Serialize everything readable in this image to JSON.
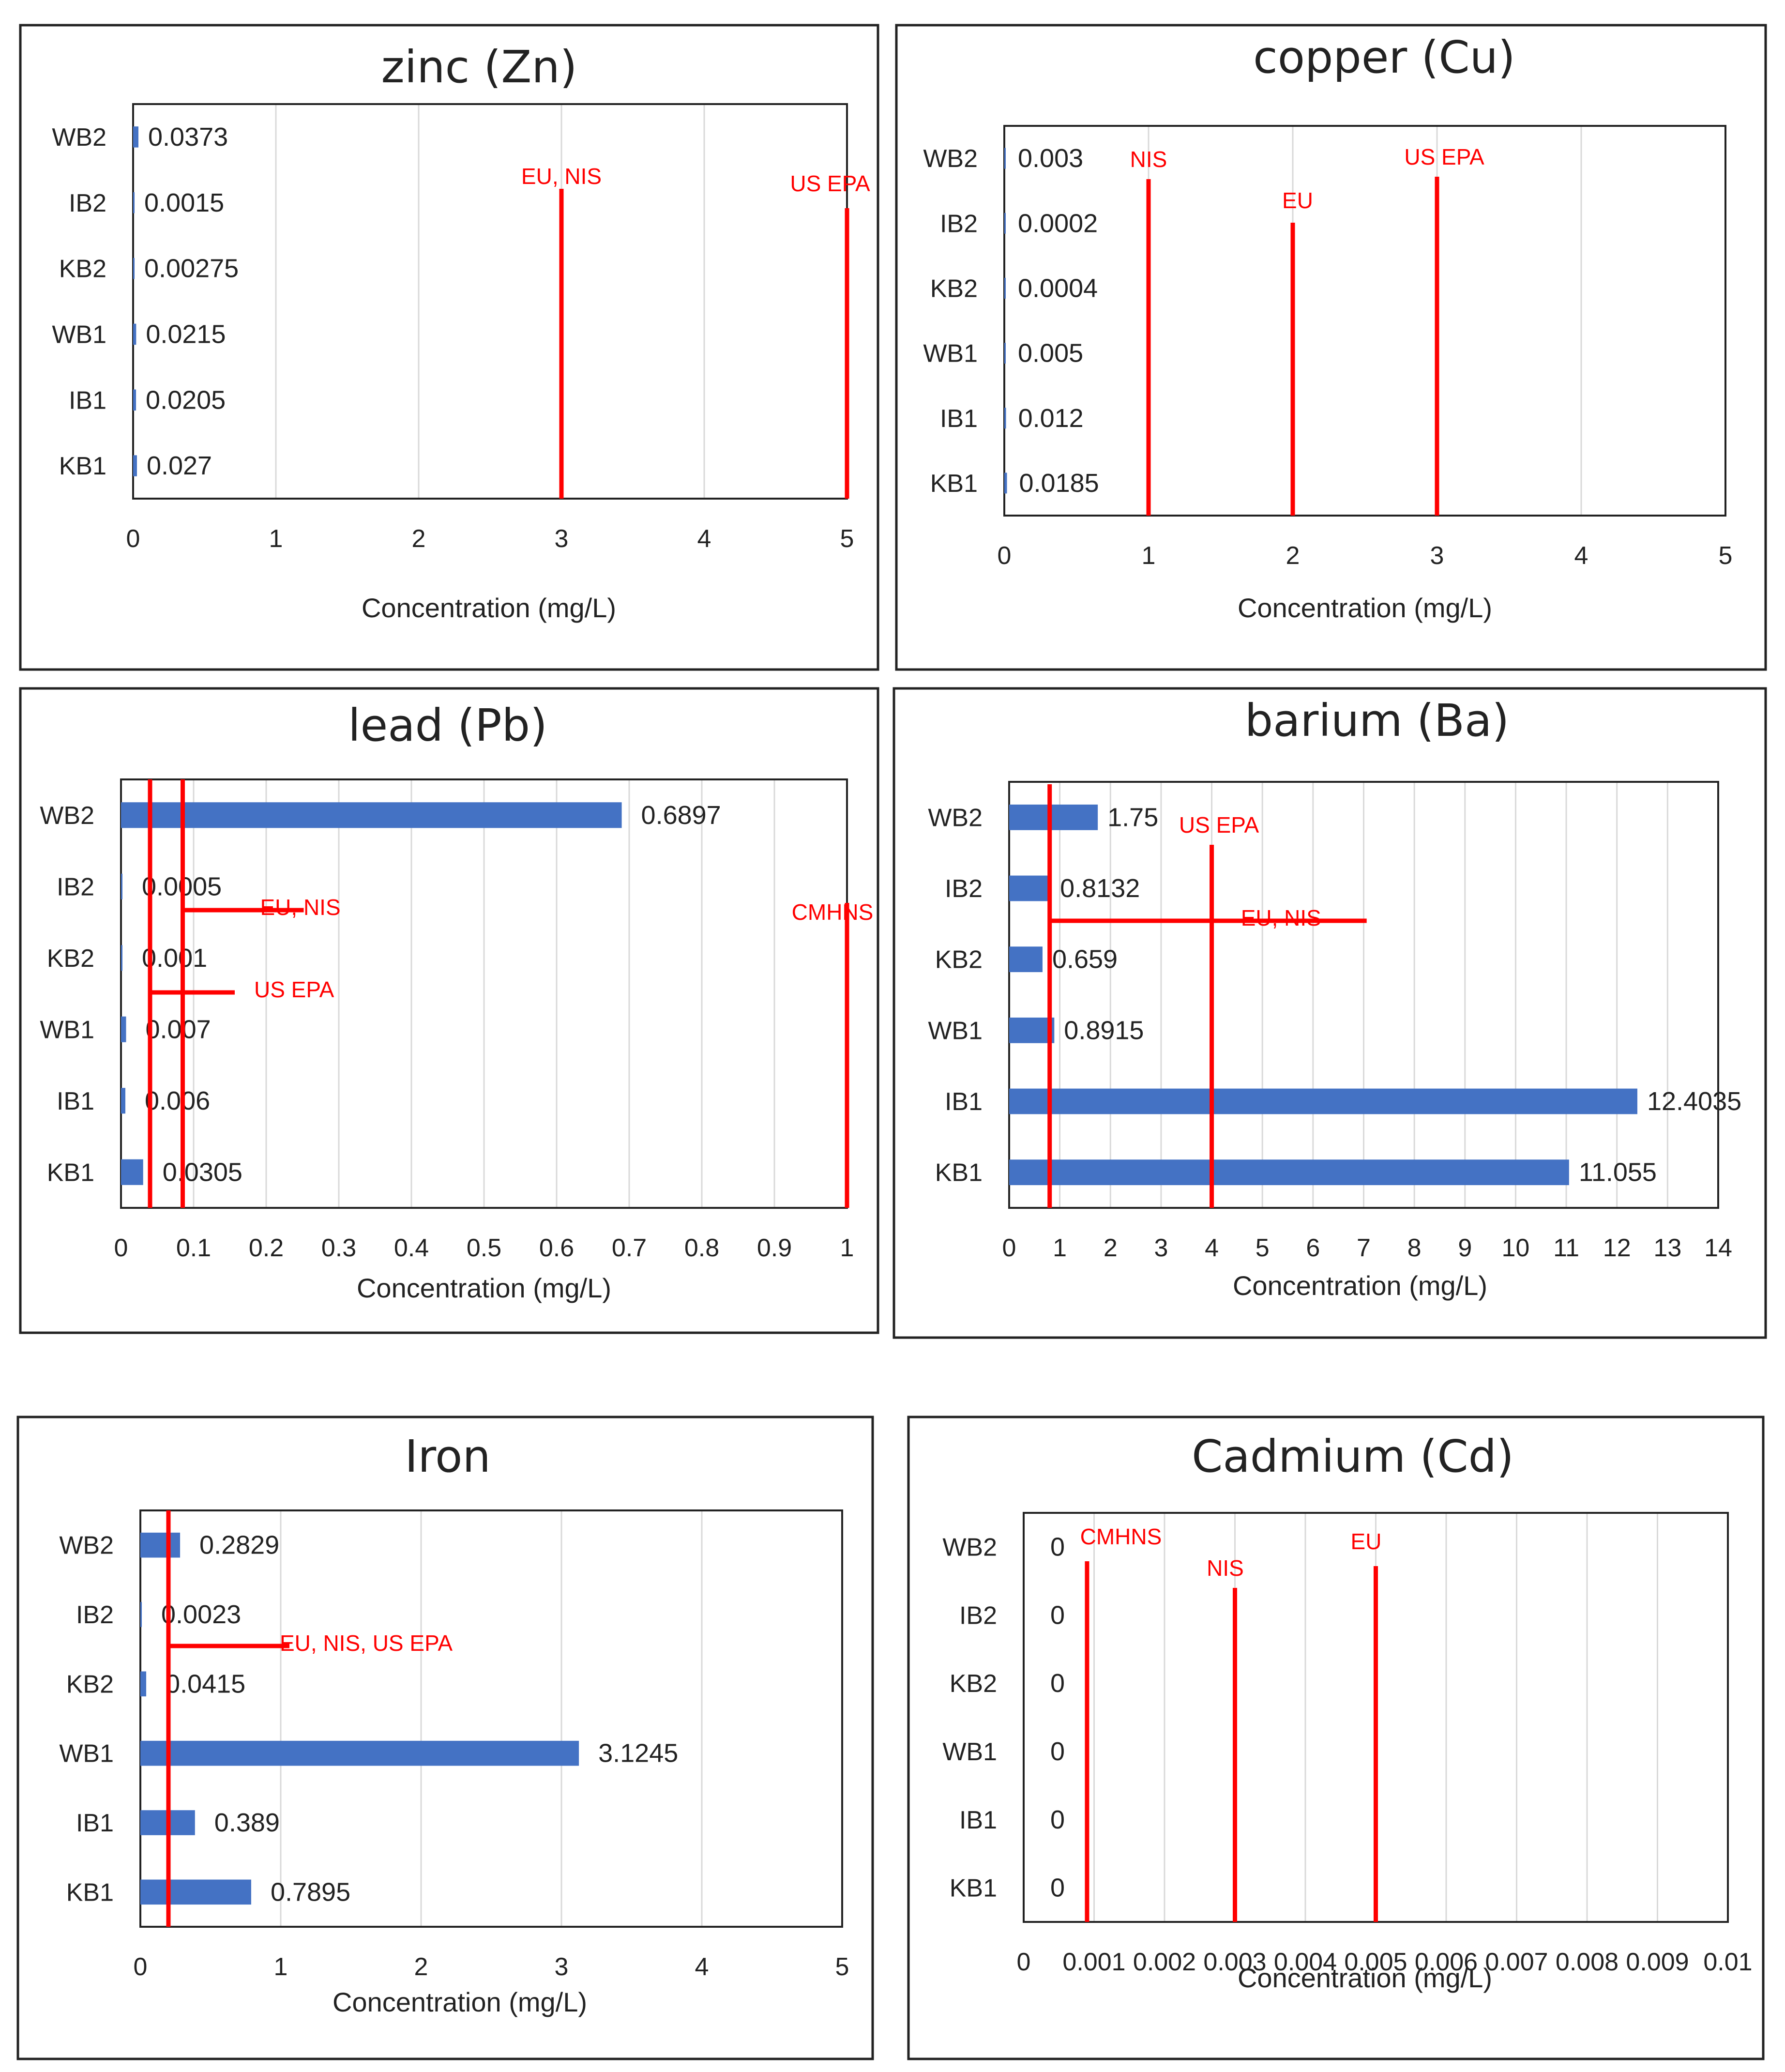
{
  "chart_data": [
    {
      "id": "zinc",
      "type": "bar",
      "title": "zinc (Zn)",
      "xlabel": "Concentration (mg/L)",
      "categories": [
        "WB2",
        "IB2",
        "KB2",
        "WB1",
        "IB1",
        "KB1"
      ],
      "values": [
        0.0373,
        0.0015,
        0.00275,
        0.0215,
        0.0205,
        0.027
      ],
      "value_labels": [
        "0.0373",
        "0.0015",
        "0.00275",
        "0.0215",
        "0.0205",
        "0.027"
      ],
      "xlim": [
        0,
        5
      ],
      "xticks": [
        0,
        1,
        2,
        3,
        4,
        5
      ],
      "xtick_labels": [
        "0",
        "1",
        "2",
        "3",
        "4",
        "5"
      ],
      "grid": true,
      "reference_lines": [
        {
          "label": "EU, NIS",
          "value": 3
        },
        {
          "label": "US EPA",
          "value": 5
        }
      ]
    },
    {
      "id": "copper",
      "type": "bar",
      "title": "copper (Cu)",
      "xlabel": "Concentration (mg/L)",
      "categories": [
        "WB2",
        "IB2",
        "KB2",
        "WB1",
        "IB1",
        "KB1"
      ],
      "values": [
        0.003,
        0.0002,
        0.0004,
        0.005,
        0.012,
        0.0185
      ],
      "value_labels": [
        "0.003",
        "0.0002",
        "0.0004",
        "0.005",
        "0.012",
        "0.0185"
      ],
      "xlim": [
        0,
        5
      ],
      "xticks": [
        0,
        1,
        2,
        3,
        4,
        5
      ],
      "xtick_labels": [
        "0",
        "1",
        "2",
        "3",
        "4",
        "5"
      ],
      "grid": true,
      "reference_lines": [
        {
          "label": "NIS",
          "value": 1
        },
        {
          "label": "EU",
          "value": 2
        },
        {
          "label": "US EPA",
          "value": 3
        }
      ]
    },
    {
      "id": "lead",
      "type": "bar",
      "title": "lead (Pb)",
      "xlabel": "Concentration (mg/L)",
      "categories": [
        "WB2",
        "IB2",
        "KB2",
        "WB1",
        "IB1",
        "KB1"
      ],
      "values": [
        0.6897,
        0.0005,
        0.001,
        0.007,
        0.006,
        0.0305
      ],
      "value_labels": [
        "0.6897",
        "0.0005",
        "0.001",
        "0.007",
        "0.006",
        "0.0305"
      ],
      "xlim": [
        0,
        1
      ],
      "xticks": [
        0,
        0.1,
        0.2,
        0.3,
        0.4,
        0.5,
        0.6,
        0.7,
        0.8,
        0.9,
        1
      ],
      "xtick_labels": [
        "0",
        "0.1",
        "0.2",
        "0.3",
        "0.4",
        "0.5",
        "0.6",
        "0.7",
        "0.8",
        "0.9",
        "1"
      ],
      "grid": true,
      "reference_lines": [
        {
          "label": "EU, NIS",
          "value": 0.085
        },
        {
          "label": "US EPA",
          "value": 0.04
        },
        {
          "label": "CMHNS",
          "value": 1
        }
      ]
    },
    {
      "id": "barium",
      "type": "bar",
      "title": "barium (Ba)",
      "xlabel": "Concentration (mg/L)",
      "categories": [
        "WB2",
        "IB2",
        "KB2",
        "WB1",
        "IB1",
        "KB1"
      ],
      "values": [
        1.75,
        0.8132,
        0.659,
        0.8915,
        12.4035,
        11.055
      ],
      "value_labels": [
        "1.75",
        "0.8132",
        "0.659",
        "0.8915",
        "12.4035",
        "11.055"
      ],
      "xlim": [
        0,
        14
      ],
      "xticks": [
        0,
        1,
        2,
        3,
        4,
        5,
        6,
        7,
        8,
        9,
        10,
        11,
        12,
        13,
        14
      ],
      "xtick_labels": [
        "0",
        "1",
        "2",
        "3",
        "4",
        "5",
        "6",
        "7",
        "8",
        "9",
        "10",
        "11",
        "12",
        "13",
        "14"
      ],
      "grid": true,
      "reference_lines": [
        {
          "label": "US EPA",
          "value": 4
        },
        {
          "label": "EU, NIS",
          "value": 0.8
        }
      ]
    },
    {
      "id": "iron",
      "type": "bar",
      "title": "Iron",
      "xlabel": "Concentration (mg/L)",
      "categories": [
        "WB2",
        "IB2",
        "KB2",
        "WB1",
        "IB1",
        "KB1"
      ],
      "values": [
        0.2829,
        0.0023,
        0.0415,
        3.1245,
        0.389,
        0.7895
      ],
      "value_labels": [
        "0.2829",
        "0.0023",
        "0.0415",
        "3.1245",
        "0.389",
        "0.7895"
      ],
      "xlim": [
        0,
        5
      ],
      "xticks": [
        0,
        1,
        2,
        3,
        4,
        5
      ],
      "xtick_labels": [
        "0",
        "1",
        "2",
        "3",
        "4",
        "5"
      ],
      "grid": true,
      "reference_lines": [
        {
          "label": "EU, NIS, US EPA",
          "value": 0.2
        }
      ]
    },
    {
      "id": "cadmium",
      "type": "bar",
      "title": "Cadmium (Cd)",
      "xlabel": "Concentration (mg/L)",
      "categories": [
        "WB2",
        "IB2",
        "KB2",
        "WB1",
        "IB1",
        "KB1"
      ],
      "values": [
        0,
        0,
        0,
        0,
        0,
        0
      ],
      "value_labels": [
        "0",
        "0",
        "0",
        "0",
        "0",
        "0"
      ],
      "xlim": [
        0,
        0.01
      ],
      "xticks": [
        0,
        0.001,
        0.002,
        0.003,
        0.004,
        0.005,
        0.006,
        0.007,
        0.008,
        0.009,
        0.01
      ],
      "xtick_labels": [
        "0",
        "0.001",
        "0.002",
        "0.003",
        "0.004",
        "0.005",
        "0.006",
        "0.007",
        "0.008",
        "0.009",
        "0.01"
      ],
      "grid": true,
      "reference_lines": [
        {
          "label": "CMHNS",
          "value": 0.0009
        },
        {
          "label": "NIS",
          "value": 0.003
        },
        {
          "label": "EU",
          "value": 0.005
        }
      ]
    }
  ],
  "colors": {
    "bar": "#4472c4",
    "reference": "#ff0000",
    "grid": "#d9d9d9",
    "frame": "#222222"
  }
}
